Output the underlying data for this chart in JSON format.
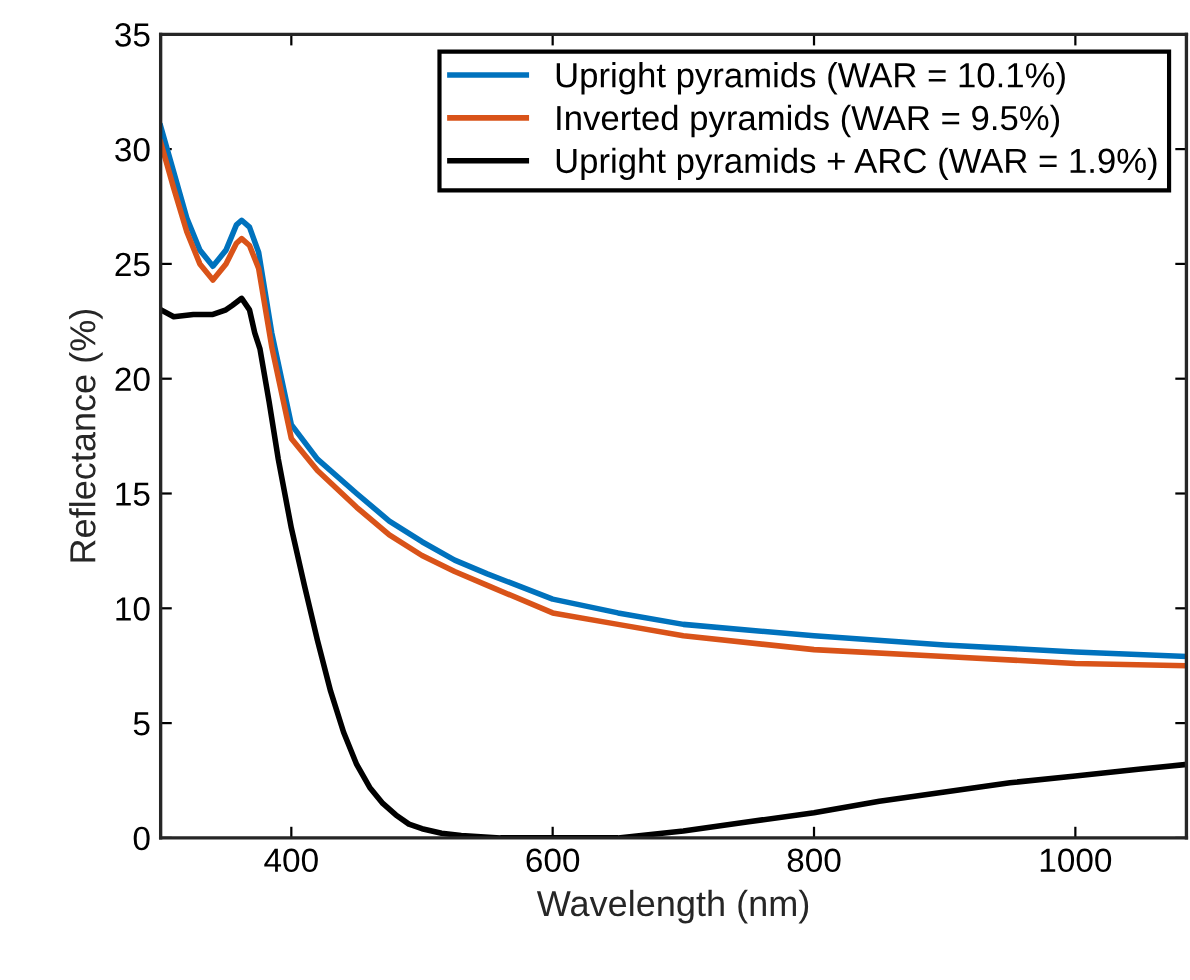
{
  "chart_data": {
    "type": "line",
    "xlabel": "Wavelength (nm)",
    "ylabel": "Reflectance (%)",
    "xlim": [
      300,
      1085
    ],
    "xticks": [
      400,
      600,
      800,
      1000
    ],
    "ylim": [
      0,
      35
    ],
    "yticks": [
      0,
      5,
      10,
      15,
      20,
      25,
      30,
      35
    ],
    "grid": false,
    "legend": "top right",
    "marker": "none",
    "line_style": "solid",
    "series": [
      {
        "name": "Upright pyramids (WAR = 10.1%)",
        "color": "#0072bd",
        "x": [
          300,
          310,
          320,
          330,
          340,
          350,
          358,
          362,
          368,
          375,
          385,
          400,
          420,
          450,
          475,
          500,
          525,
          550,
          600,
          650,
          700,
          800,
          900,
          1000,
          1085
        ],
        "values": [
          31,
          29,
          27,
          25.6,
          24.9,
          25.6,
          26.7,
          26.9,
          26.6,
          25.5,
          22,
          18,
          16.5,
          15,
          13.8,
          12.9,
          12.1,
          11.5,
          10.4,
          9.8,
          9.3,
          8.8,
          8.4,
          8.1,
          7.9
        ]
      },
      {
        "name": "Inverted pyramids (WAR = 9.5%)",
        "color": "#d95319",
        "x": [
          300,
          310,
          320,
          330,
          340,
          350,
          358,
          362,
          368,
          375,
          385,
          400,
          420,
          450,
          475,
          500,
          525,
          550,
          600,
          650,
          700,
          800,
          900,
          1000,
          1085
        ],
        "values": [
          30.3,
          28.3,
          26.4,
          25,
          24.3,
          25,
          25.9,
          26.1,
          25.8,
          24.8,
          21.4,
          17.4,
          16,
          14.4,
          13.2,
          12.3,
          11.6,
          11,
          9.8,
          9.3,
          8.8,
          8.2,
          7.9,
          7.6,
          7.5
        ]
      },
      {
        "name": "Upright pyramids + ARC (WAR = 1.9%)",
        "color": "#000000",
        "x": [
          300,
          310,
          325,
          340,
          350,
          355,
          362,
          368,
          372,
          376,
          383,
          390,
          400,
          410,
          420,
          430,
          440,
          450,
          460,
          470,
          480,
          490,
          500,
          515,
          530,
          560,
          600,
          650,
          700,
          750,
          800,
          850,
          900,
          950,
          1000,
          1050,
          1085
        ],
        "values": [
          23,
          22.7,
          22.8,
          22.8,
          23,
          23.2,
          23.5,
          23,
          22,
          21.3,
          19,
          16.5,
          13.5,
          11,
          8.6,
          6.4,
          4.6,
          3.2,
          2.2,
          1.5,
          1,
          0.6,
          0.4,
          0.2,
          0.1,
          0,
          0,
          0,
          0.3,
          0.7,
          1.1,
          1.6,
          2,
          2.4,
          2.7,
          3,
          3.2
        ]
      }
    ]
  }
}
